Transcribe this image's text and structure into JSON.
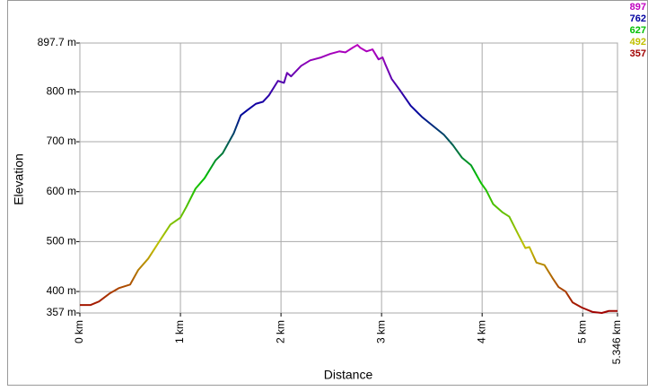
{
  "chart_data": {
    "type": "line",
    "x_label": "Distance",
    "y_label": "Elevation",
    "xlim": [
      0,
      5.346
    ],
    "ylim": [
      357,
      897.7
    ],
    "xticks": [
      {
        "value": 0,
        "label": "0 km"
      },
      {
        "value": 1,
        "label": "1 km"
      },
      {
        "value": 2,
        "label": "2 km"
      },
      {
        "value": 3,
        "label": "3 km"
      },
      {
        "value": 4,
        "label": "4 km"
      },
      {
        "value": 5,
        "label": "5 km"
      },
      {
        "value": 5.346,
        "label": "5.346 km"
      }
    ],
    "yticks": [
      {
        "value": 357,
        "label": "357 m"
      },
      {
        "value": 400,
        "label": "400 m"
      },
      {
        "value": 500,
        "label": "500 m"
      },
      {
        "value": 600,
        "label": "600 m"
      },
      {
        "value": 700,
        "label": "700 m"
      },
      {
        "value": 800,
        "label": "800 m"
      },
      {
        "value": 897.7,
        "label": "897.7 m"
      }
    ],
    "grid": true,
    "color_scale": [
      {
        "value": 897,
        "color": "#c000c0"
      },
      {
        "value": 762,
        "color": "#0000a0"
      },
      {
        "value": 627,
        "color": "#00c000"
      },
      {
        "value": 492,
        "color": "#c0c000"
      },
      {
        "value": 357,
        "color": "#a00000"
      }
    ],
    "x": [
      0,
      0.107,
      0.19,
      0.295,
      0.39,
      0.5,
      0.58,
      0.68,
      0.795,
      0.9,
      1.0,
      1.06,
      1.15,
      1.24,
      1.35,
      1.42,
      1.53,
      1.6,
      1.67,
      1.75,
      1.82,
      1.88,
      1.97,
      2.03,
      2.06,
      2.1,
      2.2,
      2.29,
      2.4,
      2.49,
      2.58,
      2.64,
      2.71,
      2.76,
      2.79,
      2.85,
      2.91,
      2.97,
      3.01,
      3.04,
      3.1,
      3.18,
      3.29,
      3.4,
      3.51,
      3.62,
      3.71,
      3.8,
      3.89,
      3.99,
      4.04,
      4.11,
      4.2,
      4.27,
      4.36,
      4.43,
      4.47,
      4.54,
      4.62,
      4.7,
      4.76,
      4.83,
      4.9,
      4.99,
      5.1,
      5.19,
      5.26,
      5.346
    ],
    "values": [
      373,
      373,
      380,
      396,
      407,
      414,
      443,
      466,
      502,
      534,
      548,
      570,
      606,
      627,
      663,
      677,
      717,
      753,
      764,
      776,
      780,
      793,
      822,
      818,
      838,
      831,
      852,
      863,
      869,
      876,
      881,
      879,
      888,
      894,
      888,
      881,
      885,
      865,
      869,
      854,
      826,
      804,
      772,
      750,
      732,
      714,
      693,
      668,
      653,
      617,
      603,
      575,
      559,
      550,
      514,
      487,
      489,
      458,
      453,
      427,
      409,
      400,
      378,
      368,
      359,
      357,
      361,
      361
    ]
  }
}
